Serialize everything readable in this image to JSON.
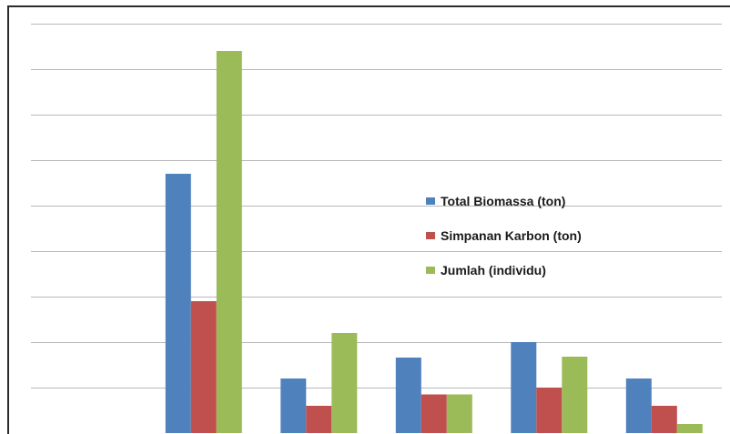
{
  "chart_data": {
    "type": "bar",
    "categories": [
      "",
      "",
      "",
      "",
      "",
      ""
    ],
    "series": [
      {
        "name": "Total Biomassa (ton)",
        "color": "#4f81bd",
        "values": [
          0,
          5.7,
          1.2,
          1.66,
          2.0,
          1.2
        ]
      },
      {
        "name": "Simpanan Karbon (ton)",
        "color": "#c0504d",
        "values": [
          0,
          2.9,
          0.6,
          0.85,
          1.0,
          0.6
        ]
      },
      {
        "name": "Jumlah (individu)",
        "color": "#9bbb59",
        "values": [
          0,
          8.4,
          2.2,
          0.85,
          1.68,
          0.2
        ]
      }
    ],
    "ylim": [
      0,
      9
    ],
    "grid": true,
    "legend_position": "center-right",
    "title": "",
    "xlabel": "",
    "ylabel": ""
  }
}
